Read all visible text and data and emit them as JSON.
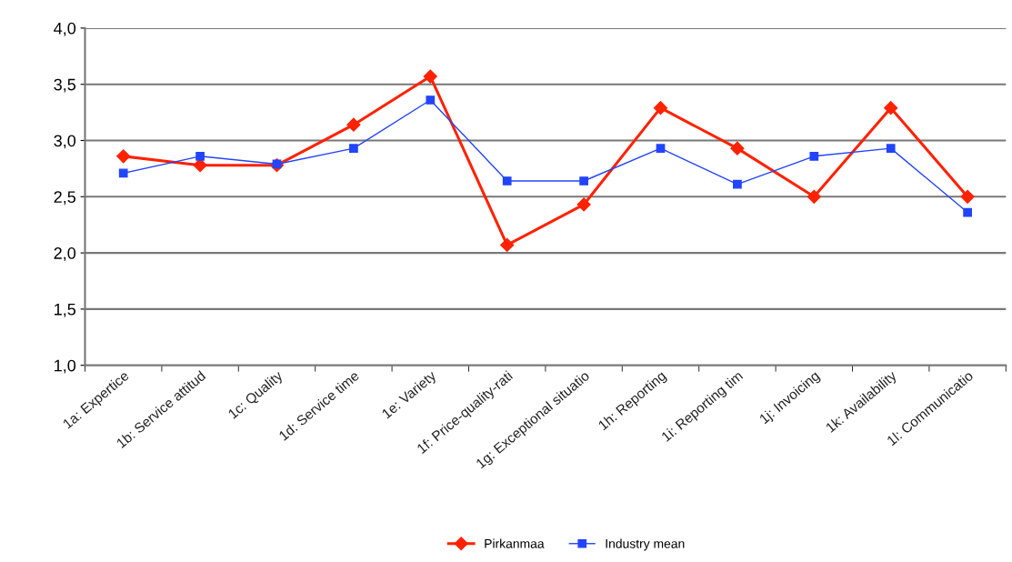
{
  "chart_data": {
    "type": "line",
    "categories": [
      "1a: Expertice",
      "1b: Service attitud",
      "1c: Quality",
      "1d: Service time",
      "1e: Variety",
      "1f: Price-quality-rati",
      "1g: Exceptional situatio",
      "1h: Reporting",
      "1i: Reporting tim",
      "1j: Invoicing",
      "1k: Availability",
      "1l: Communicatio"
    ],
    "series": [
      {
        "name": "Pirkanmaa",
        "color": "#ff2200",
        "marker": "diamond",
        "values": [
          2.86,
          2.78,
          2.78,
          3.14,
          3.57,
          2.07,
          2.43,
          3.29,
          2.93,
          2.5,
          3.29,
          2.5
        ]
      },
      {
        "name": "Industry mean",
        "color": "#2244ff",
        "marker": "square",
        "values": [
          2.71,
          2.86,
          2.79,
          2.93,
          3.36,
          2.64,
          2.64,
          2.93,
          2.61,
          2.86,
          2.93,
          2.36
        ]
      }
    ],
    "ylim": [
      1.0,
      4.0
    ],
    "yticks": [
      {
        "value": 1.0,
        "label": "1,0"
      },
      {
        "value": 1.5,
        "label": "1,5"
      },
      {
        "value": 2.0,
        "label": "2,0"
      },
      {
        "value": 2.5,
        "label": "2,5"
      },
      {
        "value": 3.0,
        "label": "3,0"
      },
      {
        "value": 3.5,
        "label": "3,5"
      },
      {
        "value": 4.0,
        "label": "4,0"
      }
    ],
    "grid": "y",
    "legend": "bottom",
    "line_style": "solid"
  }
}
